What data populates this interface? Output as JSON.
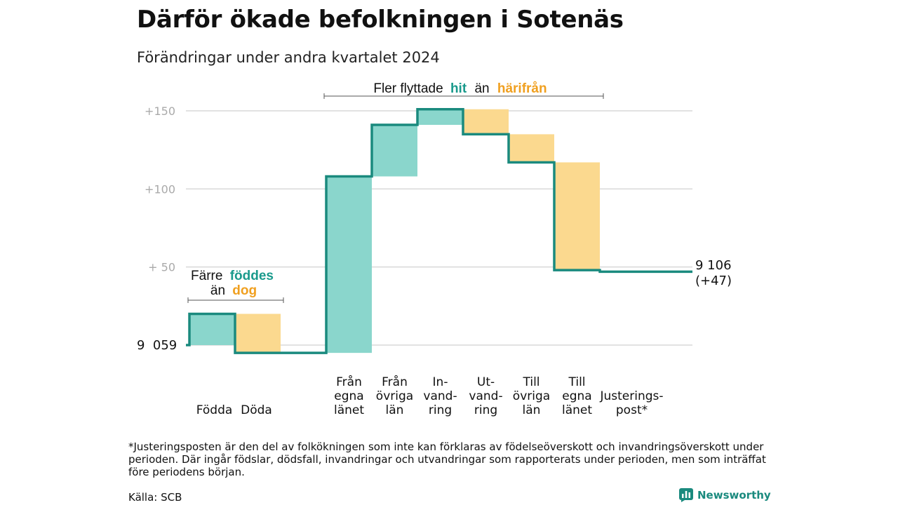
{
  "header": {
    "title": "Därför ökade befolkningen i Sotenäs",
    "subtitle": "Förändringar under andra kvartalet 2024"
  },
  "annotations": {
    "moved_prefix": "Fler flyttade",
    "moved_hit": "hit",
    "moved_middle": "än",
    "moved_harifran": "härifrån",
    "births_prefix": "Färre",
    "births_foddes": "föddes",
    "births_middle": "än",
    "births_dog": "dog"
  },
  "colors": {
    "increase_fill": "#8ad6cc",
    "decrease_fill": "#fbd98f",
    "line": "#1a8a7e",
    "teal_text": "#1a9a8c",
    "orange_text": "#f0a020",
    "grid": "#d9d9d9",
    "tick_text": "#aaaaaa"
  },
  "chart_data": {
    "type": "waterfall",
    "start_label": "9  059",
    "end_label_value": "9 106",
    "end_label_change": "(+47)",
    "baseline": 9059,
    "y_ticks": [
      {
        "value": 150,
        "label": "+150"
      },
      {
        "value": 100,
        "label": "+100"
      },
      {
        "value": 50,
        "label": "+  50"
      }
    ],
    "ylim": [
      0,
      150
    ],
    "steps": [
      {
        "category_lines": [
          "Födda"
        ],
        "change": 20,
        "kind": "increase"
      },
      {
        "category_lines": [
          "Döda"
        ],
        "change": -25,
        "kind": "decrease"
      },
      {
        "category_lines": [],
        "change": 0,
        "kind": "gap"
      },
      {
        "category_lines": [
          "Från",
          "egna",
          "länet"
        ],
        "change": 113,
        "kind": "increase"
      },
      {
        "category_lines": [
          "Från",
          "övriga",
          "län"
        ],
        "change": 33,
        "kind": "increase"
      },
      {
        "category_lines": [
          "In-",
          "vand-",
          "ring"
        ],
        "change": 10,
        "kind": "increase"
      },
      {
        "category_lines": [
          "Ut-",
          "vand-",
          "ring"
        ],
        "change": -16,
        "kind": "decrease"
      },
      {
        "category_lines": [
          "Till",
          "övriga",
          "län"
        ],
        "change": -18,
        "kind": "decrease"
      },
      {
        "category_lines": [
          "Till",
          "egna",
          "länet"
        ],
        "change": -69,
        "kind": "decrease"
      },
      {
        "category_lines": [
          "Justerings-",
          "post*"
        ],
        "change": -1,
        "kind": "adjustment"
      }
    ]
  },
  "footer": {
    "footnote": "*Justeringsposten är den del av folkökningen som inte kan förklaras av födelseöverskott och invandringsöverskott under perioden. Där ingår födslar, dödsfall, invandringar och utvandringar som rapporterats under perioden, men som inträffat före periodens början.",
    "source": "Källa: SCB",
    "brand": "Newsworthy"
  }
}
